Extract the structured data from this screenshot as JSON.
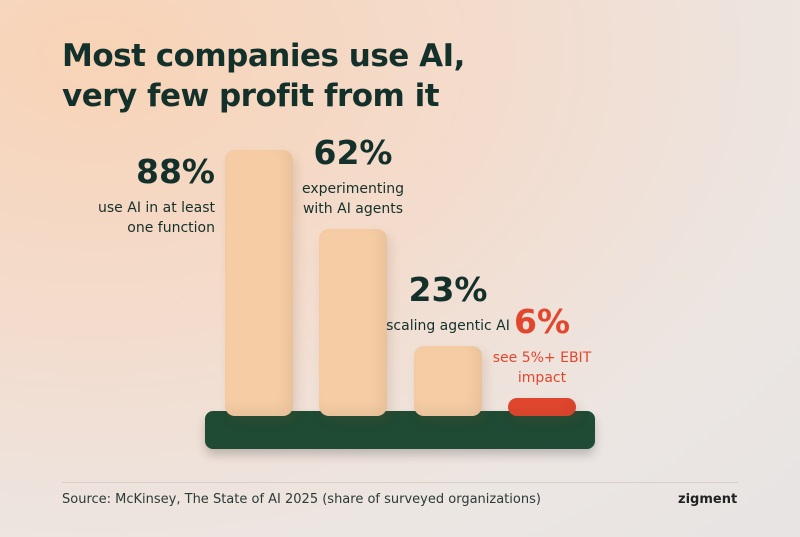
{
  "chart_data": {
    "type": "bar",
    "title": "Most companies use AI, very few profit from it",
    "categories": [
      "use AI in at least one function",
      "experimenting with AI agents",
      "scaling agentic AI",
      "see 5%+ EBIT impact"
    ],
    "values": [
      88,
      62,
      23,
      6
    ],
    "value_labels": [
      "88%",
      "62%",
      "23%",
      "6%"
    ],
    "colors": [
      "#f5cca4",
      "#f5cca4",
      "#f5cca4",
      "#e2472e"
    ],
    "label_colors": [
      "#14302a",
      "#14302a",
      "#14302a",
      "#e2472e"
    ],
    "base_color": "#1f4a33",
    "source": "Source: McKinsey, The State of AI 2025 (share of surveyed organizations)",
    "brand": "zigment"
  }
}
